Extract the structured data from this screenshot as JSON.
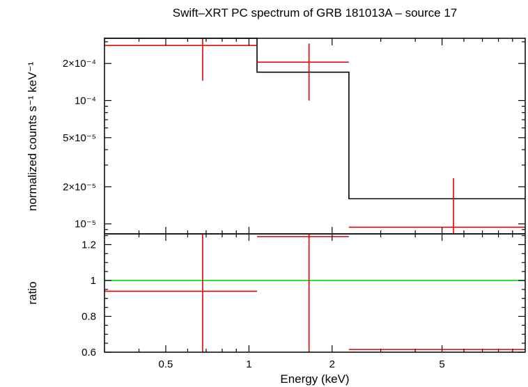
{
  "chart_data": [
    {
      "panel": "top",
      "type": "line",
      "title": "Swift–XRT PC spectrum of GRB 181013A – source 17",
      "ylabel": "normalized counts s⁻¹ keV⁻¹",
      "xscale": "log",
      "yscale": "log",
      "xlim": [
        0.3,
        10
      ],
      "ylim": [
        8.3e-06,
        0.00032
      ],
      "yticks": [
        {
          "value": 1e-05,
          "label": "10⁻⁵"
        },
        {
          "value": 2e-05,
          "label": "2×10⁻⁵"
        },
        {
          "value": 5e-05,
          "label": "5×10⁻⁵"
        },
        {
          "value": 0.0001,
          "label": "10⁻⁴"
        },
        {
          "value": 0.0002,
          "label": "2×10⁻⁴"
        }
      ],
      "model": {
        "color": "#000000",
        "steps": [
          {
            "x0": 0.3,
            "x1": 1.07,
            "y": 0.00032
          },
          {
            "x0": 1.07,
            "x1": 2.3,
            "y": 0.00017
          },
          {
            "x0": 2.3,
            "x1": 10,
            "y": 1.6e-05
          }
        ]
      },
      "data": {
        "color": "#e00000",
        "points": [
          {
            "x": 0.68,
            "xlo": 0.3,
            "xhi": 1.07,
            "y": 0.00028,
            "ylo": 0.000145,
            "yhi": 0.00032
          },
          {
            "x": 1.65,
            "xlo": 1.07,
            "xhi": 2.3,
            "y": 0.000205,
            "ylo": 0.0001,
            "yhi": 0.00029
          },
          {
            "x": 5.5,
            "xlo": 2.3,
            "xhi": 10,
            "y": 9.4e-06,
            "ylo": 8.3e-06,
            "yhi": 2.35e-05
          }
        ]
      }
    },
    {
      "panel": "bottom",
      "type": "line",
      "xlabel": "Energy (keV)",
      "ylabel": "ratio",
      "xscale": "log",
      "xlim": [
        0.3,
        10
      ],
      "ylim": [
        0.6,
        1.26
      ],
      "yticks": [
        {
          "value": 0.6,
          "label": "0.6"
        },
        {
          "value": 0.8,
          "label": "0.8"
        },
        {
          "value": 1.0,
          "label": "1"
        },
        {
          "value": 1.2,
          "label": "1.2"
        }
      ],
      "xticks": [
        {
          "value": 0.5,
          "label": "0.5"
        },
        {
          "value": 1,
          "label": "1"
        },
        {
          "value": 2,
          "label": "2"
        },
        {
          "value": 5,
          "label": "5"
        }
      ],
      "reference": {
        "y": 1.0,
        "color": "#00dd00"
      },
      "data": {
        "color": "#e00000",
        "points": [
          {
            "x": 0.68,
            "xlo": 0.3,
            "xhi": 1.07,
            "y": 0.94,
            "ylo": 0.6,
            "yhi": 1.26
          },
          {
            "x": 1.65,
            "xlo": 1.07,
            "xhi": 2.3,
            "y": 1.245,
            "ylo": 0.6,
            "yhi": 1.26
          },
          {
            "x": 5.5,
            "xlo": 2.3,
            "xhi": 10,
            "y": 0.615,
            "ylo": 0.6,
            "yhi": 0.6
          }
        ]
      }
    }
  ]
}
